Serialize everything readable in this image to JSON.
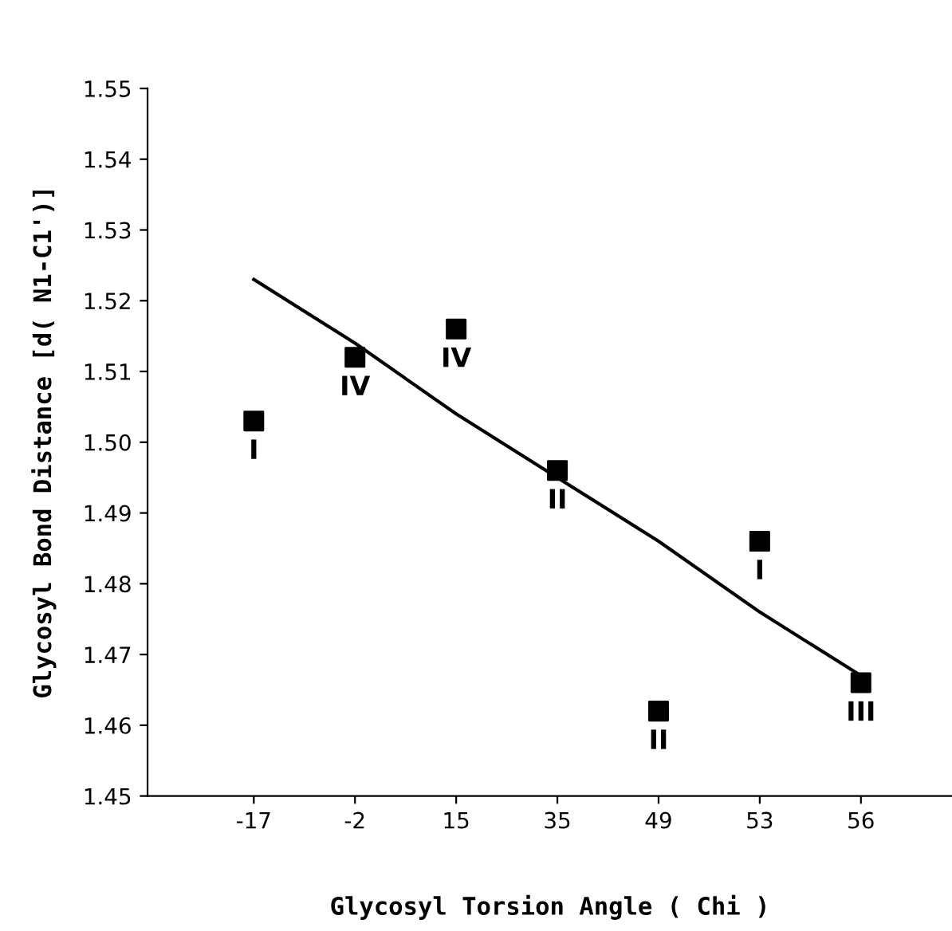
{
  "chart_data": {
    "type": "scatter",
    "xlabel": "Glycosyl Torsion Angle ( Chi )",
    "ylabel": "Glycosyl Bond Distance [d( N1-C1')]",
    "categories": [
      "-17",
      "-2",
      "15",
      "35",
      "49",
      "53",
      "56"
    ],
    "series": [
      {
        "color": "#000000",
        "marker": "square",
        "values": [
          1.503,
          1.512,
          1.516,
          1.496,
          1.462,
          1.486,
          1.466
        ]
      },
      {
        "type": "line",
        "color": "#000000",
        "line_style": "solid",
        "values": [
          1.523,
          1.514,
          1.504,
          1.495,
          1.486,
          1.476,
          1.467
        ]
      }
    ],
    "ylim": [
      1.45,
      1.55
    ],
    "yticks": [
      1.45,
      1.46,
      1.47,
      1.48,
      1.49,
      {
        "value": 1.5,
        "label": "1.50"
      },
      1.51,
      1.52,
      1.53,
      1.54,
      1.55
    ],
    "annotations": [
      {
        "text": "I",
        "x": "-17",
        "y": 1.503
      },
      {
        "text": "IV",
        "x": "-2",
        "y": 1.512
      },
      {
        "text": "IV",
        "x": "15",
        "y": 1.516
      },
      {
        "text": "II",
        "x": "35",
        "y": 1.496
      },
      {
        "text": "II",
        "x": "49",
        "y": 1.462
      },
      {
        "text": "I",
        "x": "53",
        "y": 1.486
      },
      {
        "text": "III",
        "x": "56",
        "y": 1.466
      }
    ],
    "grid": false,
    "legend": false
  }
}
